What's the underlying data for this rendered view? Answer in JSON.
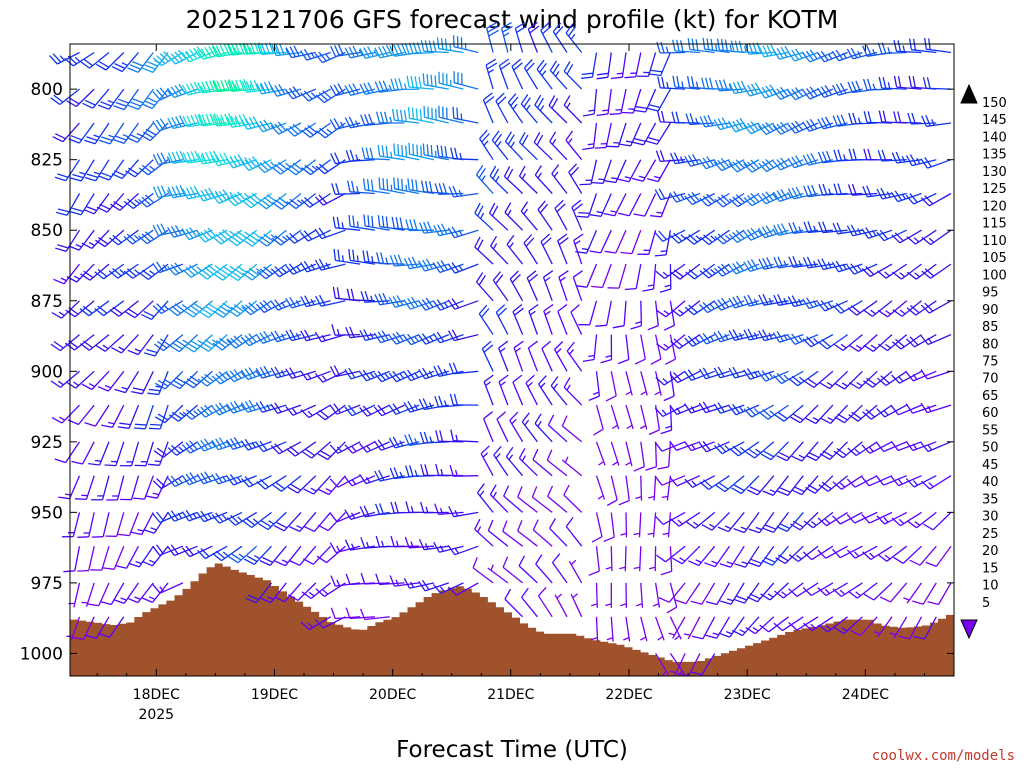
{
  "chart_data": {
    "type": "wind-barb-time-height",
    "title": "2025121706 GFS forecast wind profile (kt) for KOTM",
    "xlabel": "Forecast Time (UTC)",
    "ylabel": "",
    "x_ticks": [
      {
        "label": "18DEC",
        "sub": "2025",
        "day": 18
      },
      {
        "label": "19DEC",
        "sub": "",
        "day": 19
      },
      {
        "label": "20DEC",
        "sub": "",
        "day": 20
      },
      {
        "label": "21DEC",
        "sub": "",
        "day": 21
      },
      {
        "label": "22DEC",
        "sub": "",
        "day": 22
      },
      {
        "label": "23DEC",
        "sub": "",
        "day": 23
      },
      {
        "label": "24DEC",
        "sub": "",
        "day": 24
      }
    ],
    "xlim_days": [
      17.27,
      24.75
    ],
    "y_ticks": [
      800,
      825,
      850,
      875,
      900,
      925,
      950,
      975,
      1000
    ],
    "ylim_hpa": [
      784,
      1008
    ],
    "y_reversed": true,
    "colorbar": {
      "units": "kt",
      "levels": [
        5,
        10,
        15,
        20,
        25,
        30,
        35,
        40,
        45,
        50,
        55,
        60,
        65,
        70,
        75,
        80,
        85,
        90,
        95,
        100,
        105,
        110,
        115,
        120,
        125,
        130,
        135,
        140,
        145,
        150
      ],
      "colors": [
        "#7700ee",
        "#5500ff",
        "#3311ee",
        "#1133ee",
        "#1155ee",
        "#1177ee",
        "#1199ee",
        "#11bbee",
        "#11dddd",
        "#00eebb",
        "#00ee88",
        "#11dd44",
        "#22dd11",
        "#66ee00",
        "#aaee00",
        "#ddee00",
        "#ffee00",
        "#ffcc00",
        "#ffaa00",
        "#ff8800",
        "#ff6600",
        "#ff4400",
        "#ff1100",
        "#ee0022",
        "#ee0044",
        "#ee0066",
        "#ee0088",
        "#ee00aa",
        "#ee00cc",
        "#ee00ee"
      ]
    },
    "terrain_pressure_hpa": [
      {
        "day": 17.27,
        "p": 988
      },
      {
        "day": 17.45,
        "p": 989
      },
      {
        "day": 17.6,
        "p": 990
      },
      {
        "day": 17.75,
        "p": 989
      },
      {
        "day": 17.85,
        "p": 986
      },
      {
        "day": 18.0,
        "p": 983
      },
      {
        "day": 18.1,
        "p": 981
      },
      {
        "day": 18.2,
        "p": 978
      },
      {
        "day": 18.3,
        "p": 974
      },
      {
        "day": 18.4,
        "p": 970
      },
      {
        "day": 18.5,
        "p": 968
      },
      {
        "day": 18.6,
        "p": 970
      },
      {
        "day": 18.75,
        "p": 972
      },
      {
        "day": 18.9,
        "p": 974
      },
      {
        "day": 19.0,
        "p": 977
      },
      {
        "day": 19.15,
        "p": 981
      },
      {
        "day": 19.3,
        "p": 985
      },
      {
        "day": 19.45,
        "p": 989
      },
      {
        "day": 19.6,
        "p": 991
      },
      {
        "day": 19.7,
        "p": 992
      },
      {
        "day": 19.85,
        "p": 989
      },
      {
        "day": 20.0,
        "p": 987
      },
      {
        "day": 20.15,
        "p": 983
      },
      {
        "day": 20.3,
        "p": 979
      },
      {
        "day": 20.45,
        "p": 977
      },
      {
        "day": 20.55,
        "p": 976
      },
      {
        "day": 20.7,
        "p": 979
      },
      {
        "day": 20.85,
        "p": 983
      },
      {
        "day": 21.0,
        "p": 987
      },
      {
        "day": 21.1,
        "p": 990
      },
      {
        "day": 21.25,
        "p": 993
      },
      {
        "day": 21.5,
        "p": 993
      },
      {
        "day": 21.65,
        "p": 995
      },
      {
        "day": 21.9,
        "p": 997
      },
      {
        "day": 22.05,
        "p": 999
      },
      {
        "day": 22.2,
        "p": 1001
      },
      {
        "day": 22.35,
        "p": 1003
      },
      {
        "day": 22.55,
        "p": 1003
      },
      {
        "day": 22.7,
        "p": 1001
      },
      {
        "day": 22.85,
        "p": 999
      },
      {
        "day": 23.0,
        "p": 997
      },
      {
        "day": 23.15,
        "p": 995
      },
      {
        "day": 23.35,
        "p": 992
      },
      {
        "day": 23.6,
        "p": 990
      },
      {
        "day": 23.8,
        "p": 988
      },
      {
        "day": 24.0,
        "p": 988
      },
      {
        "day": 24.1,
        "p": 990
      },
      {
        "day": 24.3,
        "p": 991
      },
      {
        "day": 24.5,
        "p": 990
      },
      {
        "day": 24.6,
        "p": 988
      },
      {
        "day": 24.75,
        "p": 985
      }
    ],
    "barb_time_step_hours": 3,
    "barb_levels_hpa": [
      787,
      800,
      812,
      825,
      837,
      850,
      862,
      875,
      887,
      900,
      912,
      925,
      937,
      950,
      962,
      975,
      987,
      1000
    ]
  },
  "colors": {
    "terrain": "#a0522d",
    "credit": "#c0392b"
  },
  "credit": "coolwx.com/models"
}
